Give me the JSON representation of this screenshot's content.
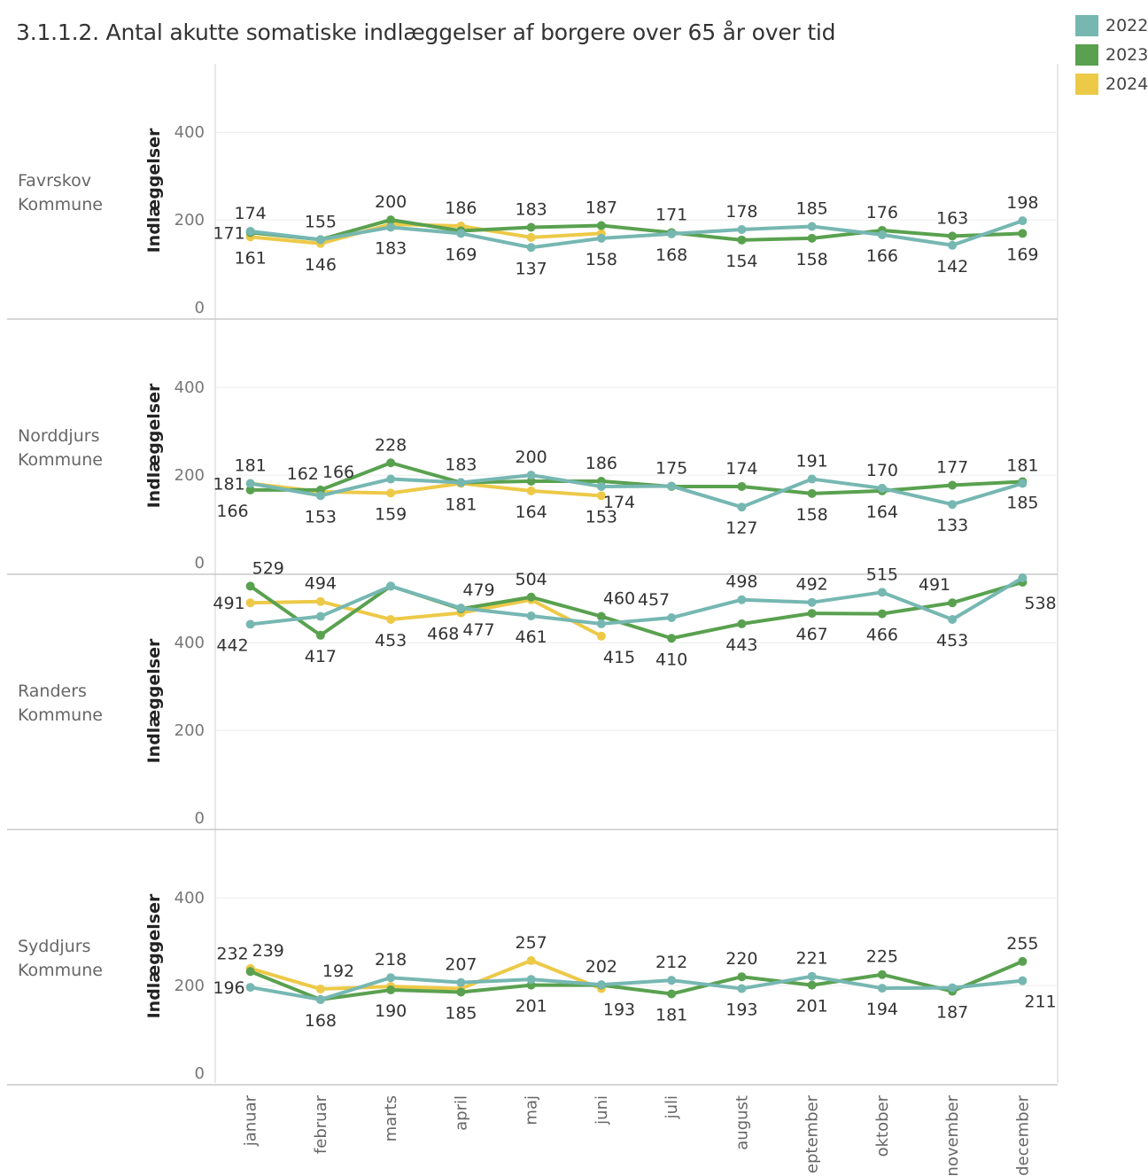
{
  "title": "3.1.1.2. Antal akutte somatiske indlæggelser af borgere over 65 år over tid",
  "legend": [
    {
      "label": "2022",
      "color": "#76b7b2"
    },
    {
      "label": "2023",
      "color": "#59a14f"
    },
    {
      "label": "2024",
      "color": "#edc948"
    }
  ],
  "chart_data": {
    "type": "line",
    "categories": [
      "januar",
      "februar",
      "marts",
      "april",
      "maj",
      "juni",
      "juli",
      "august",
      "september",
      "oktober",
      "november",
      "december"
    ],
    "category_labels_shown": [
      "januar",
      "februar",
      "marts",
      "april",
      "maj",
      "juni",
      "juli",
      "august",
      "eptember",
      "oktober",
      "november",
      "december"
    ],
    "ylabel": "Indlæggelser",
    "yticks": [
      0,
      200,
      400
    ],
    "panels": [
      {
        "name": "Favrskov Kommune",
        "name_lines": [
          "Favrskov",
          "Kommune"
        ],
        "ylim": [
          0,
          560
        ],
        "series": [
          {
            "name": "2022",
            "values": [
              174,
              155,
              183,
              169,
              137,
              158,
              168,
              178,
              185,
              166,
              142,
              198
            ]
          },
          {
            "name": "2023",
            "values": [
              171,
              155,
              200,
              175,
              183,
              187,
              171,
              154,
              158,
              176,
              163,
              169
            ]
          },
          {
            "name": "2024",
            "values": [
              161,
              146,
              190,
              186,
              160,
              169
            ]
          }
        ],
        "labels": [
          {
            "text": "171",
            "i": 0,
            "s": "2023",
            "pos": "left"
          },
          {
            "text": "174",
            "i": 0,
            "s": "2022",
            "pos": "above"
          },
          {
            "text": "161",
            "i": 0,
            "s": "2024",
            "pos": "below"
          },
          {
            "text": "155",
            "i": 1,
            "s": "2022",
            "pos": "above"
          },
          {
            "text": "146",
            "i": 1,
            "s": "2024",
            "pos": "below"
          },
          {
            "text": "200",
            "i": 2,
            "s": "2023",
            "pos": "above"
          },
          {
            "text": "183",
            "i": 2,
            "s": "2022",
            "pos": "below"
          },
          {
            "text": "186",
            "i": 3,
            "s": "2024",
            "pos": "above"
          },
          {
            "text": "169",
            "i": 3,
            "s": "2022",
            "pos": "below"
          },
          {
            "text": "183",
            "i": 4,
            "s": "2023",
            "pos": "above"
          },
          {
            "text": "137",
            "i": 4,
            "s": "2022",
            "pos": "below"
          },
          {
            "text": "187",
            "i": 5,
            "s": "2023",
            "pos": "above"
          },
          {
            "text": "158",
            "i": 5,
            "s": "2022",
            "pos": "below"
          },
          {
            "text": "171",
            "i": 6,
            "s": "2023",
            "pos": "above"
          },
          {
            "text": "168",
            "i": 6,
            "s": "2022",
            "pos": "below"
          },
          {
            "text": "178",
            "i": 7,
            "s": "2022",
            "pos": "above"
          },
          {
            "text": "154",
            "i": 7,
            "s": "2023",
            "pos": "below"
          },
          {
            "text": "185",
            "i": 8,
            "s": "2022",
            "pos": "above"
          },
          {
            "text": "158",
            "i": 8,
            "s": "2023",
            "pos": "below"
          },
          {
            "text": "176",
            "i": 9,
            "s": "2023",
            "pos": "above"
          },
          {
            "text": "166",
            "i": 9,
            "s": "2022",
            "pos": "below"
          },
          {
            "text": "163",
            "i": 10,
            "s": "2023",
            "pos": "above"
          },
          {
            "text": "142",
            "i": 10,
            "s": "2022",
            "pos": "below"
          },
          {
            "text": "198",
            "i": 11,
            "s": "2022",
            "pos": "above"
          },
          {
            "text": "169",
            "i": 11,
            "s": "2023",
            "pos": "below"
          }
        ]
      },
      {
        "name": "Norddjurs Kommune",
        "name_lines": [
          "Norddjurs",
          "Kommune"
        ],
        "ylim": [
          0,
          560
        ],
        "series": [
          {
            "name": "2022",
            "values": [
              181,
              153,
              191,
              183,
              200,
              174,
              175,
              127,
              191,
              170,
              133,
              181
            ]
          },
          {
            "name": "2023",
            "values": [
              166,
              166,
              228,
              183,
              186,
              186,
              174,
              174,
              158,
              164,
              177,
              185
            ]
          },
          {
            "name": "2024",
            "values": [
              181,
              162,
              159,
              181,
              164,
              153
            ]
          }
        ],
        "labels": [
          {
            "text": "181",
            "i": 0,
            "s": "2024",
            "pos": "left"
          },
          {
            "text": "181",
            "i": 0,
            "s": "2022",
            "pos": "above"
          },
          {
            "text": "166",
            "i": 0,
            "s": "2023",
            "pos": "belowleft"
          },
          {
            "text": "162",
            "i": 1,
            "s": "2024",
            "pos": "aboveleft"
          },
          {
            "text": "166",
            "i": 1,
            "s": "2023",
            "pos": "aboveright"
          },
          {
            "text": "153",
            "i": 1,
            "s": "2022",
            "pos": "below"
          },
          {
            "text": "228",
            "i": 2,
            "s": "2023",
            "pos": "above"
          },
          {
            "text": "159",
            "i": 2,
            "s": "2024",
            "pos": "below"
          },
          {
            "text": "183",
            "i": 3,
            "s": "2022",
            "pos": "above"
          },
          {
            "text": "181",
            "i": 3,
            "s": "2024",
            "pos": "below"
          },
          {
            "text": "200",
            "i": 4,
            "s": "2022",
            "pos": "above"
          },
          {
            "text": "164",
            "i": 4,
            "s": "2024",
            "pos": "below"
          },
          {
            "text": "186",
            "i": 5,
            "s": "2023",
            "pos": "above"
          },
          {
            "text": "153",
            "i": 5,
            "s": "2024",
            "pos": "below"
          },
          {
            "text": "174",
            "i": 5,
            "s": "2023",
            "pos": "belowright"
          },
          {
            "text": "175",
            "i": 6,
            "s": "2022",
            "pos": "above"
          },
          {
            "text": "174",
            "i": 7,
            "s": "2023",
            "pos": "above"
          },
          {
            "text": "127",
            "i": 7,
            "s": "2022",
            "pos": "below"
          },
          {
            "text": "191",
            "i": 8,
            "s": "2022",
            "pos": "above"
          },
          {
            "text": "158",
            "i": 8,
            "s": "2023",
            "pos": "below"
          },
          {
            "text": "170",
            "i": 9,
            "s": "2022",
            "pos": "above"
          },
          {
            "text": "164",
            "i": 9,
            "s": "2023",
            "pos": "below"
          },
          {
            "text": "177",
            "i": 10,
            "s": "2023",
            "pos": "above"
          },
          {
            "text": "133",
            "i": 10,
            "s": "2022",
            "pos": "below"
          },
          {
            "text": "181",
            "i": 11,
            "s": "2022",
            "pos": "above"
          },
          {
            "text": "185",
            "i": 11,
            "s": "2023",
            "pos": "below"
          }
        ]
      },
      {
        "name": "Randers Kommune",
        "name_lines": [
          "Randers",
          "Kommune"
        ],
        "ylim": [
          0,
          560
        ],
        "series": [
          {
            "name": "2022",
            "values": [
              442,
              460,
              529,
              479,
              461,
              443,
              457,
              498,
              492,
              515,
              453,
              548
            ]
          },
          {
            "name": "2023",
            "values": [
              529,
              417,
              529,
              477,
              504,
              460,
              410,
              443,
              467,
              466,
              491,
              538
            ]
          },
          {
            "name": "2024",
            "values": [
              491,
              494,
              453,
              468,
              498,
              415
            ]
          }
        ],
        "labels": [
          {
            "text": "529",
            "i": 0,
            "s": "2023",
            "pos": "aboveright"
          },
          {
            "text": "491",
            "i": 0,
            "s": "2024",
            "pos": "left"
          },
          {
            "text": "442",
            "i": 0,
            "s": "2022",
            "pos": "belowleft"
          },
          {
            "text": "494",
            "i": 1,
            "s": "2024",
            "pos": "above"
          },
          {
            "text": "417",
            "i": 1,
            "s": "2023",
            "pos": "below"
          },
          {
            "text": "453",
            "i": 2,
            "s": "2024",
            "pos": "below"
          },
          {
            "text": "479",
            "i": 3,
            "s": "2022",
            "pos": "aboveright"
          },
          {
            "text": "468",
            "i": 3,
            "s": "2024",
            "pos": "belowleft"
          },
          {
            "text": "477",
            "i": 3,
            "s": "2023",
            "pos": "belowright"
          },
          {
            "text": "504",
            "i": 4,
            "s": "2023",
            "pos": "above"
          },
          {
            "text": "461",
            "i": 4,
            "s": "2022",
            "pos": "below"
          },
          {
            "text": "460",
            "i": 5,
            "s": "2023",
            "pos": "aboveright"
          },
          {
            "text": "415",
            "i": 5,
            "s": "2024",
            "pos": "belowright"
          },
          {
            "text": "457",
            "i": 6,
            "s": "2022",
            "pos": "aboveleft"
          },
          {
            "text": "410",
            "i": 6,
            "s": "2023",
            "pos": "below"
          },
          {
            "text": "498",
            "i": 7,
            "s": "2022",
            "pos": "above"
          },
          {
            "text": "443",
            "i": 7,
            "s": "2023",
            "pos": "below"
          },
          {
            "text": "492",
            "i": 8,
            "s": "2022",
            "pos": "above"
          },
          {
            "text": "467",
            "i": 8,
            "s": "2023",
            "pos": "below"
          },
          {
            "text": "515",
            "i": 9,
            "s": "2022",
            "pos": "above"
          },
          {
            "text": "466",
            "i": 9,
            "s": "2023",
            "pos": "below"
          },
          {
            "text": "491",
            "i": 10,
            "s": "2023",
            "pos": "aboveleft"
          },
          {
            "text": "453",
            "i": 10,
            "s": "2022",
            "pos": "below"
          },
          {
            "text": "538",
            "i": 11,
            "s": "2023",
            "pos": "belowright"
          }
        ]
      },
      {
        "name": "Syddjurs Kommune",
        "name_lines": [
          "Syddjurs",
          "Kommune"
        ],
        "ylim": [
          0,
          560
        ],
        "series": [
          {
            "name": "2022",
            "values": [
              196,
              168,
              218,
              207,
              214,
              202,
              212,
              193,
              221,
              194,
              195,
              211
            ]
          },
          {
            "name": "2023",
            "values": [
              232,
              168,
              190,
              185,
              201,
              201,
              181,
              220,
              201,
              225,
              187,
              255
            ]
          },
          {
            "name": "2024",
            "values": [
              239,
              192,
              198,
              193,
              257,
              193
            ]
          }
        ],
        "labels": [
          {
            "text": "232",
            "i": 0,
            "s": "2023",
            "pos": "aboveleft"
          },
          {
            "text": "239",
            "i": 0,
            "s": "2024",
            "pos": "aboveright"
          },
          {
            "text": "196",
            "i": 0,
            "s": "2022",
            "pos": "left"
          },
          {
            "text": "192",
            "i": 1,
            "s": "2024",
            "pos": "aboveright"
          },
          {
            "text": "168",
            "i": 1,
            "s": "2023",
            "pos": "below"
          },
          {
            "text": "218",
            "i": 2,
            "s": "2022",
            "pos": "above"
          },
          {
            "text": "190",
            "i": 2,
            "s": "2023",
            "pos": "below"
          },
          {
            "text": "207",
            "i": 3,
            "s": "2022",
            "pos": "above"
          },
          {
            "text": "185",
            "i": 3,
            "s": "2023",
            "pos": "below"
          },
          {
            "text": "257",
            "i": 4,
            "s": "2024",
            "pos": "above"
          },
          {
            "text": "201",
            "i": 4,
            "s": "2023",
            "pos": "below"
          },
          {
            "text": "202",
            "i": 5,
            "s": "2022",
            "pos": "above"
          },
          {
            "text": "193",
            "i": 5,
            "s": "2024",
            "pos": "belowright"
          },
          {
            "text": "212",
            "i": 6,
            "s": "2022",
            "pos": "above"
          },
          {
            "text": "181",
            "i": 6,
            "s": "2023",
            "pos": "below"
          },
          {
            "text": "220",
            "i": 7,
            "s": "2023",
            "pos": "above"
          },
          {
            "text": "193",
            "i": 7,
            "s": "2022",
            "pos": "below"
          },
          {
            "text": "221",
            "i": 8,
            "s": "2022",
            "pos": "above"
          },
          {
            "text": "201",
            "i": 8,
            "s": "2023",
            "pos": "below"
          },
          {
            "text": "225",
            "i": 9,
            "s": "2023",
            "pos": "above"
          },
          {
            "text": "194",
            "i": 9,
            "s": "2022",
            "pos": "below"
          },
          {
            "text": "187",
            "i": 10,
            "s": "2023",
            "pos": "below"
          },
          {
            "text": "255",
            "i": 11,
            "s": "2023",
            "pos": "above"
          },
          {
            "text": "211",
            "i": 11,
            "s": "2022",
            "pos": "belowright"
          }
        ]
      }
    ]
  }
}
